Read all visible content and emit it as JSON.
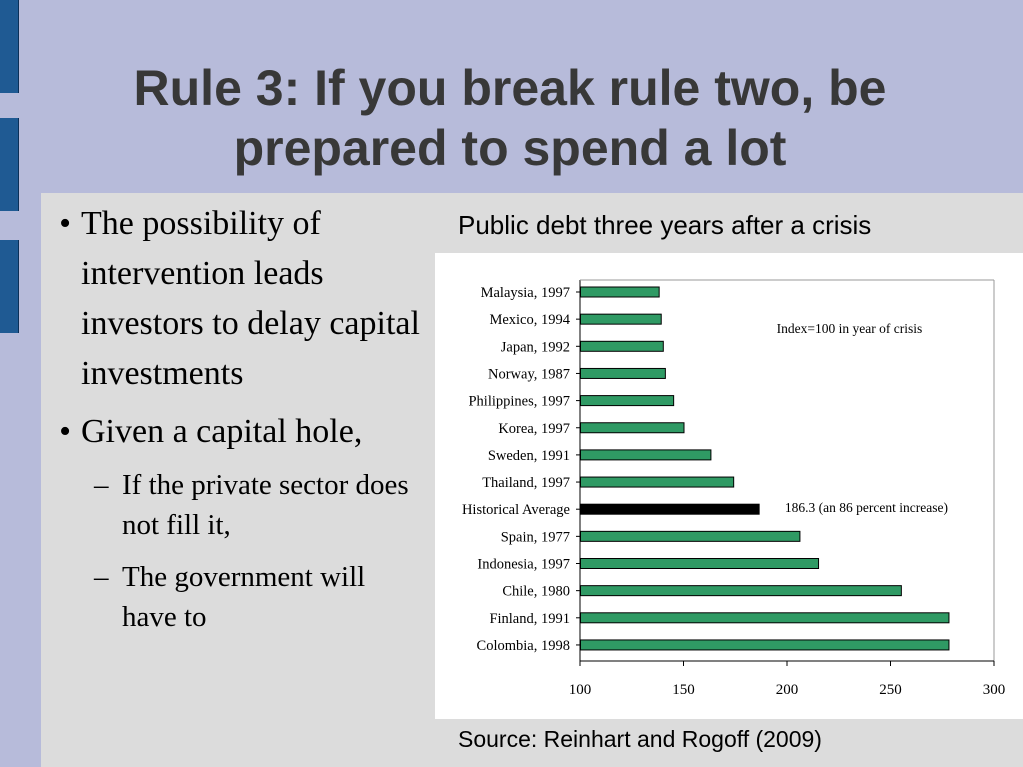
{
  "slide": {
    "title_line1": "Rule 3:  If you break rule two, be",
    "title_line2": "prepared to spend a lot",
    "bullets": [
      {
        "marker": "•",
        "text": "The possibility of intervention leads investors to delay capital investments"
      },
      {
        "marker": "•",
        "text": "Given a capital hole,"
      }
    ],
    "sub_bullets": [
      {
        "marker": "–",
        "text": "If the private sector does not fill it,"
      },
      {
        "marker": "–",
        "text": "The government will have to"
      }
    ],
    "chart_heading": "Public debt three years after a crisis",
    "source": "Source:  Reinhart and Rogoff (2009)"
  },
  "colors": {
    "background": "#b7bbda",
    "panel": "#dcdcdc",
    "side_tab": "#1f5a93",
    "bar": "#2f9a64",
    "highlight_bar": "#000000"
  },
  "chart_data": {
    "type": "bar",
    "orientation": "horizontal",
    "title": "Public debt three years after a crisis",
    "xlabel": "",
    "ylabel": "",
    "xlim": [
      100,
      300
    ],
    "xticks": [
      100,
      150,
      200,
      250,
      300
    ],
    "grid": false,
    "categories": [
      "Malaysia, 1997",
      "Mexico, 1994",
      "Japan, 1992",
      "Norway, 1987",
      "Philippines, 1997",
      "Korea, 1997",
      "Sweden, 1991",
      "Thailand, 1997",
      "Historical Average",
      "Spain, 1977",
      "Indonesia, 1997",
      "Chile, 1980",
      "Finland, 1991",
      "Colombia, 1998"
    ],
    "values": [
      138,
      139,
      140,
      141,
      145,
      150,
      163,
      174,
      186.3,
      206,
      215,
      255,
      278,
      278
    ],
    "highlight": "Historical Average",
    "annotations": [
      {
        "text": "Index=100 in year of crisis",
        "category": "Mexico, 1994",
        "x": 195
      },
      {
        "text": "186.3 (an 86 percent increase)",
        "category": "Historical Average",
        "x": 199
      }
    ]
  }
}
